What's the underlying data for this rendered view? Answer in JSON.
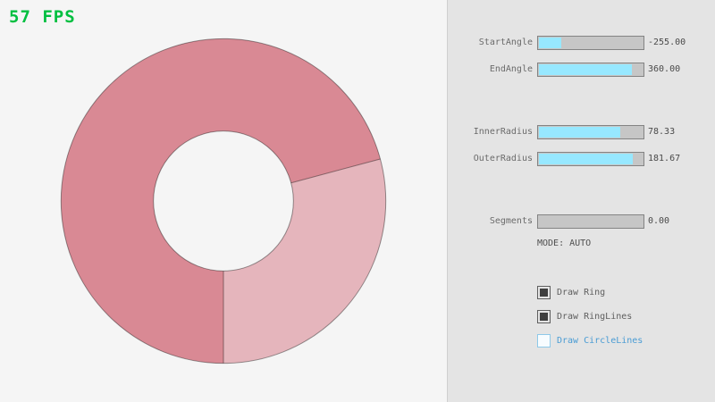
{
  "fps": {
    "text": "57 FPS",
    "color": "#00bf40"
  },
  "ring": {
    "start_angle": -255.0,
    "end_angle": 360.0,
    "inner_radius": 78.33,
    "outer_radius": 181.67,
    "fill_single": "#e5b5bc",
    "fill_double": "#d98994",
    "line_color": "rgba(0,0,0,0.4)"
  },
  "panel": {
    "accent_fill": "#97e8ff",
    "highlight_color": "#4a9cd4",
    "sliders": [
      {
        "label": "StartAngle",
        "value": "-255.00",
        "fill_pct": 21.7
      },
      {
        "label": "EndAngle",
        "value": "360.00",
        "fill_pct": 90.0
      },
      {
        "label": "InnerRadius",
        "value": "78.33",
        "fill_pct": 78.3
      },
      {
        "label": "OuterRadius",
        "value": "181.67",
        "fill_pct": 90.8
      },
      {
        "label": "Segments",
        "value": "0.00",
        "fill_pct": 0
      }
    ],
    "mode_text": "MODE: AUTO",
    "checkboxes": [
      {
        "label": "Draw Ring",
        "checked": true,
        "highlighted": false
      },
      {
        "label": "Draw RingLines",
        "checked": true,
        "highlighted": false
      },
      {
        "label": "Draw CircleLines",
        "checked": false,
        "highlighted": true
      }
    ]
  }
}
